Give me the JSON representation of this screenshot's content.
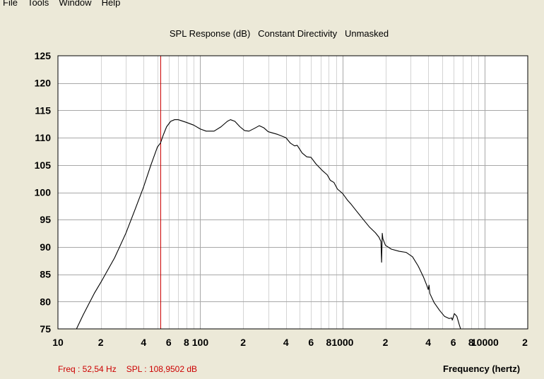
{
  "menu": {
    "items": [
      "File",
      "Tools",
      "Window",
      "Help"
    ]
  },
  "readout": {
    "freq": "Freq : 52,54 Hz",
    "spl": "SPL : 108,9502 dB"
  },
  "chart_data": {
    "type": "line",
    "title_parts": [
      "SPL Response (dB)",
      "Constant Directivity",
      "Unmasked"
    ],
    "xlabel": "Frequency (hertz)",
    "ylabel": "",
    "x_scale": "log",
    "xlim": [
      10,
      20000
    ],
    "ylim": [
      75,
      125
    ],
    "y_ticks": [
      75,
      80,
      85,
      90,
      95,
      100,
      105,
      110,
      115,
      120,
      125
    ],
    "x_tick_labels": [
      {
        "x": 10,
        "label": "10"
      },
      {
        "x": 20,
        "label": "2"
      },
      {
        "x": 40,
        "label": "4"
      },
      {
        "x": 60,
        "label": "6"
      },
      {
        "x": 80,
        "label": "8"
      },
      {
        "x": 100,
        "label": "100"
      },
      {
        "x": 200,
        "label": "2"
      },
      {
        "x": 400,
        "label": "4"
      },
      {
        "x": 600,
        "label": "6"
      },
      {
        "x": 800,
        "label": "8"
      },
      {
        "x": 1000,
        "label": "1000"
      },
      {
        "x": 2000,
        "label": "2"
      },
      {
        "x": 4000,
        "label": "4"
      },
      {
        "x": 6000,
        "label": "6"
      },
      {
        "x": 8000,
        "label": "8"
      },
      {
        "x": 10000,
        "label": "10000"
      },
      {
        "x": 20000,
        "label": "2"
      }
    ],
    "grid": true,
    "cursor_x": 52.54,
    "line_color": "#000000",
    "cursor_color": "#cc0000",
    "series": [
      {
        "points": [
          [
            13.5,
            75
          ],
          [
            15,
            77.5
          ],
          [
            18,
            81.5
          ],
          [
            20,
            83.5
          ],
          [
            25,
            88
          ],
          [
            30,
            92.5
          ],
          [
            35,
            97
          ],
          [
            40,
            101
          ],
          [
            45,
            105
          ],
          [
            50,
            108.3
          ],
          [
            52.5,
            109
          ],
          [
            55,
            110.5
          ],
          [
            58,
            112
          ],
          [
            62,
            113
          ],
          [
            66,
            113.3
          ],
          [
            70,
            113.3
          ],
          [
            80,
            112.8
          ],
          [
            90,
            112.3
          ],
          [
            100,
            111.6
          ],
          [
            110,
            111.2
          ],
          [
            125,
            111.2
          ],
          [
            140,
            112
          ],
          [
            155,
            113
          ],
          [
            163,
            113.3
          ],
          [
            175,
            113
          ],
          [
            190,
            112
          ],
          [
            205,
            111.3
          ],
          [
            220,
            111.2
          ],
          [
            240,
            111.7
          ],
          [
            260,
            112.2
          ],
          [
            280,
            111.8
          ],
          [
            300,
            111.1
          ],
          [
            350,
            110.6
          ],
          [
            400,
            110
          ],
          [
            430,
            109
          ],
          [
            460,
            108.5
          ],
          [
            480,
            108.6
          ],
          [
            520,
            107.2
          ],
          [
            560,
            106.5
          ],
          [
            600,
            106.4
          ],
          [
            650,
            105.2
          ],
          [
            720,
            104
          ],
          [
            780,
            103.2
          ],
          [
            820,
            102.2
          ],
          [
            870,
            101.8
          ],
          [
            920,
            100.6
          ],
          [
            1000,
            99.8
          ],
          [
            1080,
            98.6
          ],
          [
            1150,
            97.8
          ],
          [
            1250,
            96.6
          ],
          [
            1400,
            95
          ],
          [
            1550,
            93.6
          ],
          [
            1700,
            92.6
          ],
          [
            1800,
            91.8
          ],
          [
            1860,
            91
          ],
          [
            1880,
            87.2
          ],
          [
            1900,
            92.5
          ],
          [
            1920,
            91.5
          ],
          [
            2000,
            90.3
          ],
          [
            2200,
            89.6
          ],
          [
            2500,
            89.2
          ],
          [
            2800,
            89
          ],
          [
            3100,
            88.2
          ],
          [
            3400,
            86.5
          ],
          [
            3700,
            84.5
          ],
          [
            3900,
            83
          ],
          [
            4000,
            82.2
          ],
          [
            4050,
            83
          ],
          [
            4100,
            81.5
          ],
          [
            4400,
            79.8
          ],
          [
            4800,
            78.4
          ],
          [
            5200,
            77.3
          ],
          [
            5600,
            76.9
          ],
          [
            5850,
            77
          ],
          [
            5900,
            76.6
          ],
          [
            6100,
            77.8
          ],
          [
            6350,
            77.3
          ],
          [
            6600,
            75.8
          ],
          [
            6750,
            75
          ]
        ]
      }
    ]
  }
}
